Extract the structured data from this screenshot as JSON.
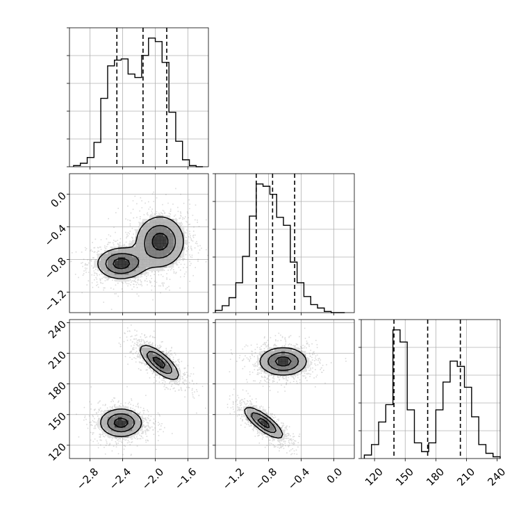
{
  "chart_data": {
    "type": "corner",
    "parameters": [
      {
        "name": "",
        "range": [
          -3.05,
          -1.35
        ],
        "ticks": [
          -2.8,
          -2.4,
          -2.0,
          -1.6
        ],
        "tick_labels": [
          "−2.8",
          "−2.4",
          "−2.0",
          "−1.6"
        ],
        "quantiles": [
          -2.47,
          -2.15,
          -1.86
        ]
      },
      {
        "name": "",
        "range": [
          -1.45,
          0.25
        ],
        "ticks": [
          -1.2,
          -0.8,
          -0.4,
          0.0
        ],
        "tick_labels": [
          "−1.2",
          "−0.8",
          "−0.4",
          "0.0"
        ],
        "quantiles": [
          -0.95,
          -0.75,
          -0.48
        ]
      },
      {
        "name": "",
        "range": [
          107,
          243
        ],
        "ticks": [
          120,
          150,
          180,
          210,
          240
        ],
        "tick_labels": [
          "120",
          "150",
          "180",
          "210",
          "240"
        ],
        "quantiles": [
          139,
          172,
          204
        ]
      }
    ],
    "histograms": [
      {
        "param": 0,
        "bin_edges": [
          -3.0,
          -2.917,
          -2.833,
          -2.75,
          -2.667,
          -2.583,
          -2.5,
          -2.417,
          -2.333,
          -2.25,
          -2.167,
          -2.083,
          -2.0,
          -1.917,
          -1.833,
          -1.75,
          -1.667,
          -1.583,
          -1.5,
          -1.417
        ],
        "counts": [
          1,
          3,
          8,
          21,
          59,
          87,
          92,
          93,
          80,
          77,
          96,
          111,
          108,
          90,
          47,
          22,
          6,
          1,
          0
        ]
      },
      {
        "param": 1,
        "bin_edges": [
          -1.45,
          -1.367,
          -1.283,
          -1.2,
          -1.117,
          -1.033,
          -0.95,
          -0.867,
          -0.783,
          -0.7,
          -0.617,
          -0.533,
          -0.45,
          -0.367,
          -0.283,
          -0.2,
          -0.117,
          -0.033,
          0.05,
          0.133
        ],
        "counts": [
          2,
          6,
          13,
          26,
          49,
          84,
          112,
          110,
          103,
          83,
          76,
          44,
          26,
          14,
          7,
          4,
          1,
          0,
          0
        ]
      },
      {
        "param": 2,
        "bin_edges": [
          110,
          117,
          124,
          131,
          138,
          145,
          152,
          159,
          166,
          173,
          180,
          187,
          194,
          201,
          208,
          215,
          222,
          229,
          236,
          243
        ],
        "counts": [
          2,
          8,
          21,
          31,
          74,
          67,
          28,
          9,
          4,
          9,
          28,
          44,
          56,
          53,
          41,
          24,
          8,
          3,
          1
        ]
      }
    ],
    "pairs": [
      {
        "x": 0,
        "y": 1,
        "modes": [
          {
            "cx": -2.42,
            "cy": -0.85,
            "sx": 0.17,
            "sy": 0.11,
            "rho": 0.0
          },
          {
            "cx": -1.94,
            "cy": -0.58,
            "sx": 0.17,
            "sy": 0.18,
            "rho": 0.0
          }
        ],
        "levels": [
          0.25,
          0.55,
          0.85
        ]
      },
      {
        "x": 0,
        "y": 2,
        "modes": [
          {
            "cx": -2.42,
            "cy": 142,
            "sx": 0.15,
            "sy": 8,
            "rho": 0.0
          },
          {
            "cx": -1.95,
            "cy": 201,
            "sx": 0.14,
            "sy": 10,
            "rho": -0.75
          }
        ],
        "levels": [
          0.25,
          0.55,
          0.85
        ]
      },
      {
        "x": 1,
        "y": 2,
        "modes": [
          {
            "cx": -0.86,
            "cy": 142,
            "sx": 0.14,
            "sy": 9,
            "rho": -0.8
          },
          {
            "cx": -0.62,
            "cy": 202,
            "sx": 0.17,
            "sy": 8,
            "rho": 0.0
          }
        ],
        "levels": [
          0.25,
          0.55,
          0.85
        ]
      }
    ],
    "grid": true,
    "quantile_style": "dashed"
  }
}
